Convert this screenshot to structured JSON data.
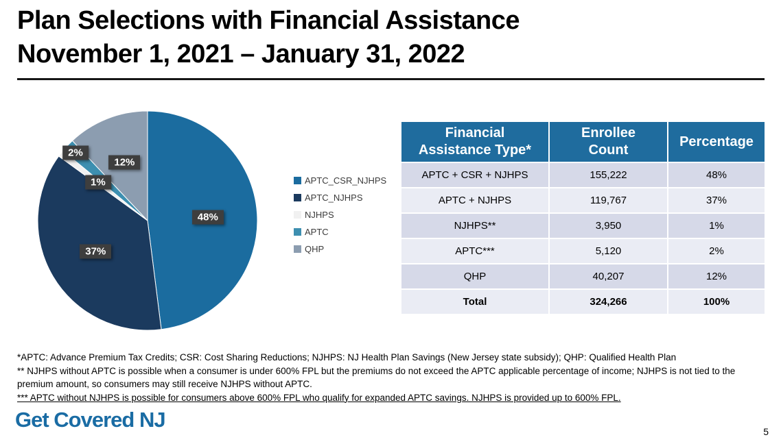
{
  "header": {
    "title_line1": "Plan Selections with Financial Assistance",
    "title_line2": "November 1, 2021 – January 31, 2022"
  },
  "chart_data": {
    "type": "pie",
    "title": "",
    "legend_position": "right",
    "slices": [
      {
        "label": "APTC_CSR_NJHPS",
        "value": 48,
        "display": "48%",
        "color": "#1B6C9F"
      },
      {
        "label": "APTC_NJHPS",
        "value": 37,
        "display": "37%",
        "color": "#1B3A5E"
      },
      {
        "label": "NJHPS",
        "value": 1,
        "display": "1%",
        "color": "#F1F1F1"
      },
      {
        "label": "APTC",
        "value": 2,
        "display": "2%",
        "color": "#3D8FB0"
      },
      {
        "label": "QHP",
        "value": 12,
        "display": "12%",
        "color": "#8C9DB0"
      }
    ]
  },
  "table": {
    "headers": [
      "Financial\nAssistance Type*",
      "Enrollee\nCount",
      "Percentage"
    ],
    "rows": [
      [
        "APTC + CSR + NJHPS",
        "155,222",
        "48%"
      ],
      [
        "APTC + NJHPS",
        "119,767",
        "37%"
      ],
      [
        "NJHPS**",
        "3,950",
        "1%"
      ],
      [
        "APTC***",
        "5,120",
        "2%"
      ],
      [
        "QHP",
        "40,207",
        "12%"
      ]
    ],
    "total_row": [
      "Total",
      "324,266",
      "100%"
    ]
  },
  "footnotes": [
    "*APTC: Advance Premium Tax Credits; CSR: Cost Sharing Reductions; NJHPS: NJ Health Plan Savings (New Jersey state subsidy); QHP: Qualified Health Plan",
    "** NJHPS without APTC is possible when a consumer is under 600% FPL but the premiums do not exceed the APTC applicable percentage of income; NJHPS is not tied to the premium amount, so consumers may still receive NJHPS without APTC.",
    "*** APTC without NJHPS is possible for consumers above 600% FPL who qualify for expanded APTC savings. NJHPS is provided up to 600% FPL."
  ],
  "footer": {
    "logo_text": "Get Covered NJ",
    "page_number": "5"
  },
  "colors": {
    "table_header_bg": "#1F6C9E",
    "row_dark": "#D6D9E8",
    "row_light": "#EAECF4",
    "label_badge_bg": "#3E3E3E",
    "logo_blue": "#1A6CA4"
  }
}
